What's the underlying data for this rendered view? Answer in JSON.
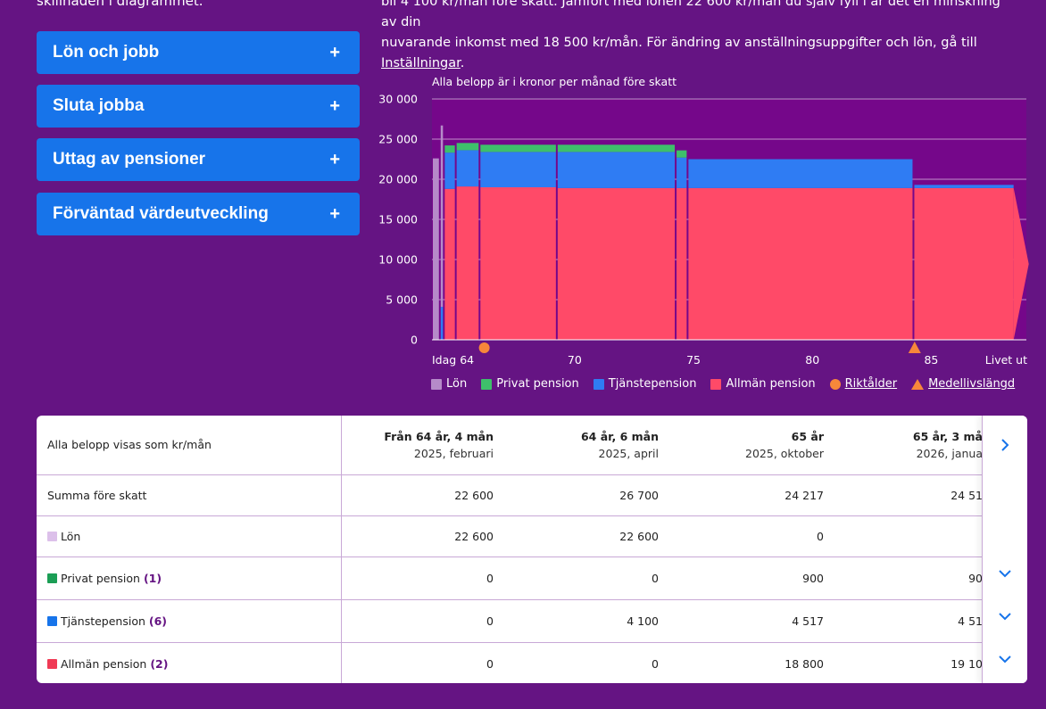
{
  "intro": {
    "left_text": "skillnaden i diagrammet.",
    "right_line1": "bli 4 100 kr/mån före skatt. Jämfört med lönen 22 600 kr/mån du själv fyll i är det en minskning av din",
    "right_line2": "nuvarande inkomst med 18 500 kr/mån. För ändring av anställningsuppgifter och lön, gå till",
    "right_link": "Inställningar",
    "right_end": "."
  },
  "accordions": [
    {
      "label": "Lön och jobb",
      "icon": "plus-icon"
    },
    {
      "label": "Sluta jobba",
      "icon": "plus-icon"
    },
    {
      "label": "Uttag av pensioner",
      "icon": "plus-icon"
    },
    {
      "label": "Förväntad värdeutveckling",
      "icon": "plus-icon"
    }
  ],
  "chart_data": {
    "type": "area",
    "stacked": true,
    "title": "Alla belopp är i kronor per månad före skatt",
    "ylim": [
      0,
      30000
    ],
    "yticks": [
      {
        "value": 0,
        "label": "0"
      },
      {
        "value": 5000,
        "label": "5 000"
      },
      {
        "value": 10000,
        "label": "10 000"
      },
      {
        "value": 15000,
        "label": "15 000"
      },
      {
        "value": 20000,
        "label": "20 000"
      },
      {
        "value": 25000,
        "label": "25 000"
      },
      {
        "value": 30000,
        "label": "30 000"
      }
    ],
    "xlim": [
      64,
      89
    ],
    "xticks": [
      {
        "value": 64,
        "label": "Idag 64"
      },
      {
        "value": 70,
        "label": "70"
      },
      {
        "value": 75,
        "label": "75"
      },
      {
        "value": 80,
        "label": "80"
      },
      {
        "value": 85,
        "label": "85"
      },
      {
        "value": 89,
        "label": "Livet ut"
      }
    ],
    "grid": true,
    "colors": {
      "lon": "#b68ac9",
      "privat": "#3ebf6b",
      "tjanste": "#2f7cf3",
      "allman": "#ff4a68",
      "riktalder": "#f7873a",
      "medellivslangd": "#f7873a",
      "background": "#75078a"
    },
    "series_names": [
      "Lön",
      "Privat pension",
      "Tjänstepension",
      "Allmän pension"
    ],
    "segments": [
      {
        "x0": 64.0,
        "x1": 64.33,
        "lon": 22600,
        "privat": 0,
        "tjanste": 0,
        "allman": 0
      },
      {
        "x0": 64.33,
        "x1": 64.5,
        "lon": 22600,
        "privat": 0,
        "tjanste": 4100,
        "allman": 0
      },
      {
        "x0": 64.5,
        "x1": 65.0,
        "lon": 0,
        "privat": 900,
        "tjanste": 4517,
        "allman": 18800
      },
      {
        "x0": 65.0,
        "x1": 66.0,
        "lon": 0,
        "privat": 900,
        "tjanste": 4517,
        "allman": 19100
      },
      {
        "x0": 66.0,
        "x1": 69.25,
        "lon": 0,
        "privat": 900,
        "tjanste": 4400,
        "allman": 19000
      },
      {
        "x0": 69.25,
        "x1": 74.25,
        "lon": 0,
        "privat": 900,
        "tjanste": 4500,
        "allman": 18900
      },
      {
        "x0": 74.25,
        "x1": 74.75,
        "lon": 0,
        "privat": 900,
        "tjanste": 3800,
        "allman": 18900
      },
      {
        "x0": 74.75,
        "x1": 84.25,
        "lon": 0,
        "privat": 0,
        "tjanste": 3600,
        "allman": 18900
      },
      {
        "x0": 84.25,
        "x1": 88.5,
        "lon": 0,
        "privat": 0,
        "tjanste": 400,
        "allman": 18900
      }
    ],
    "markers": [
      {
        "type": "circle",
        "name": "Riktålder",
        "x": 66.2
      },
      {
        "type": "triangle",
        "name": "Medellivslängd",
        "x": 84.3
      }
    ],
    "legend": [
      {
        "label": "Lön",
        "kind": "square",
        "color": "#b68ac9"
      },
      {
        "label": "Privat pension",
        "kind": "square",
        "color": "#3ebf6b"
      },
      {
        "label": "Tjänstepension",
        "kind": "square",
        "color": "#2f7cf3"
      },
      {
        "label": "Allmän pension",
        "kind": "square",
        "color": "#ff4a68"
      },
      {
        "label": "Riktålder",
        "kind": "circle",
        "color": "#f7873a",
        "link": true
      },
      {
        "label": "Medellivslängd",
        "kind": "triangle",
        "color": "#f7873a",
        "link": true
      }
    ]
  },
  "table": {
    "corner_label": "Alla belopp visas som kr/mån",
    "columns": [
      {
        "title": "Från 64 år, 4 mån",
        "sub": "2025, februari"
      },
      {
        "title": "64 år, 6 mån",
        "sub": "2025, april"
      },
      {
        "title": "65 år",
        "sub": "2025, oktober"
      },
      {
        "title": "65 år, 3 må",
        "sub": "2026, janua"
      }
    ],
    "rows": [
      {
        "label": "Summa före skatt",
        "swatch": "",
        "count": "",
        "values": [
          "22 600",
          "26 700",
          "24 217",
          "24 51"
        ]
      },
      {
        "label": "Lön",
        "swatch": "#dcc0ea",
        "count": "",
        "values": [
          "22 600",
          "22 600",
          "0",
          ""
        ]
      },
      {
        "label": "Privat pension",
        "swatch": "#1b9e55",
        "count": "(1)",
        "values": [
          "0",
          "0",
          "900",
          "90"
        ]
      },
      {
        "label": "Tjänstepension",
        "swatch": "#1774ea",
        "count": "(6)",
        "values": [
          "0",
          "4 100",
          "4 517",
          "4 51"
        ]
      },
      {
        "label": "Allmän pension",
        "swatch": "#f03a55",
        "count": "(2)",
        "values": [
          "0",
          "0",
          "18 800",
          "19 10"
        ]
      }
    ],
    "next_icon": "chevron-right-icon",
    "expand_icon": "chevron-down-icon"
  }
}
